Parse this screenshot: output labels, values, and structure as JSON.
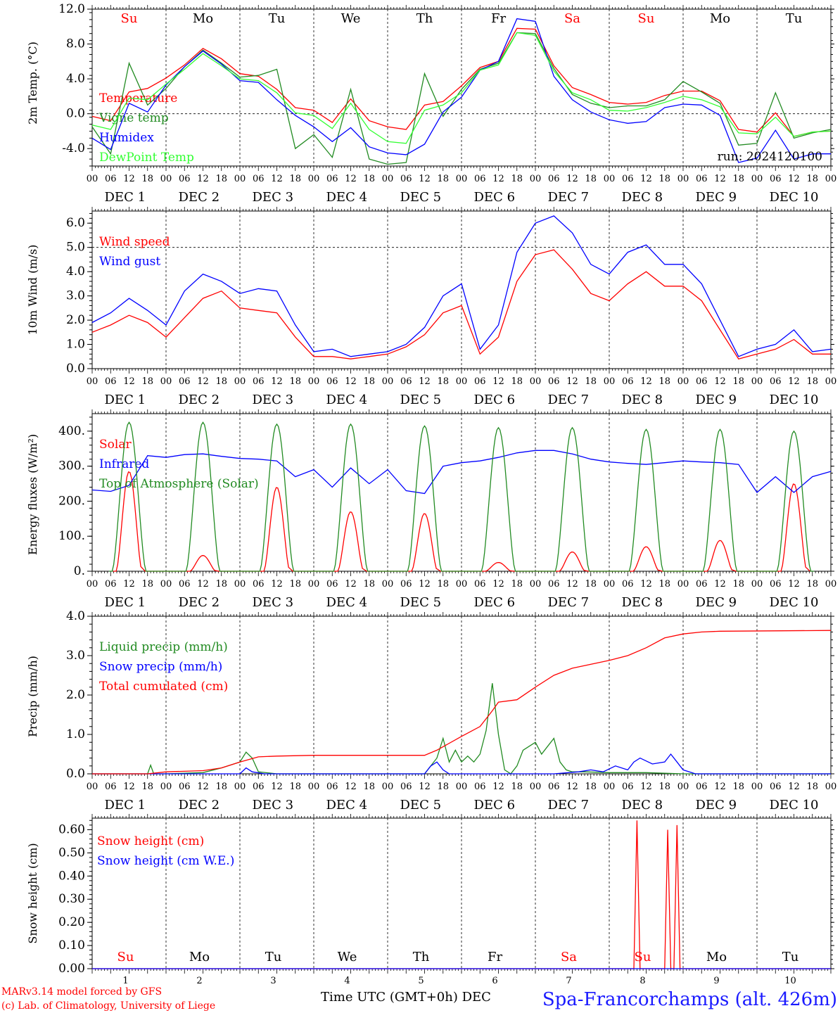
{
  "chart_data": [
    {
      "type": "line",
      "ylabel": "2m Temp. (°C)",
      "ylim": [
        -6,
        12
      ],
      "yticks": [
        "-4.0",
        "0.0",
        "4.0",
        "8.0",
        "12.0"
      ],
      "ytick_values": [
        -4,
        0,
        4,
        8,
        12
      ],
      "reference_line": 0,
      "x_unit": "hours from 2024-12-01 00 UTC",
      "xlim": [
        0,
        240
      ],
      "run_label": "run: 2024120100",
      "series": [
        {
          "name": "Temperature",
          "color": "#ff0000",
          "x": [
            0,
            6,
            12,
            18,
            24,
            30,
            36,
            42,
            48,
            54,
            60,
            66,
            72,
            78,
            84,
            90,
            96,
            102,
            108,
            114,
            120,
            126,
            132,
            138,
            144,
            150,
            156,
            162,
            168,
            174,
            180,
            186,
            192,
            198,
            204,
            210,
            216,
            222,
            228,
            234,
            240
          ],
          "y": [
            -0.3,
            -0.8,
            2.5,
            2.9,
            4.1,
            5.6,
            7.5,
            6.3,
            4.6,
            4.3,
            2.8,
            0.7,
            0.4,
            -1.0,
            1.7,
            -0.8,
            -1.5,
            -1.8,
            1.0,
            1.4,
            3.2,
            5.3,
            6.0,
            9.8,
            9.7,
            5.5,
            3.0,
            2.2,
            1.3,
            1.1,
            1.3,
            2.1,
            2.6,
            2.6,
            1.5,
            -1.8,
            -2.1,
            0.1,
            -2.6,
            -2.1,
            -2.0
          ]
        },
        {
          "name": "Vigne temp",
          "color": "#228b22",
          "x": [
            0,
            6,
            12,
            18,
            24,
            30,
            36,
            42,
            48,
            54,
            60,
            66,
            72,
            78,
            84,
            90,
            96,
            102,
            108,
            114,
            120,
            126,
            132,
            138,
            144,
            150,
            156,
            162,
            168,
            174,
            180,
            186,
            192,
            198,
            204,
            210,
            216,
            222,
            228,
            234,
            240
          ],
          "y": [
            -1.5,
            -4.6,
            5.8,
            1.0,
            2.9,
            5.4,
            7.3,
            5.8,
            4.2,
            4.4,
            5.1,
            -4.0,
            -2.4,
            -5.0,
            2.8,
            -5.2,
            -5.8,
            -5.6,
            4.6,
            -0.3,
            2.8,
            5.1,
            5.8,
            9.3,
            9.2,
            5.2,
            2.2,
            1.2,
            0.7,
            0.9,
            0.9,
            1.6,
            3.7,
            2.5,
            1.2,
            -3.6,
            -3.4,
            2.4,
            -2.8,
            -2.2,
            -1.8
          ]
        },
        {
          "name": "Humidex",
          "color": "#0000ff",
          "x": [
            0,
            6,
            12,
            18,
            24,
            30,
            36,
            42,
            48,
            54,
            60,
            66,
            72,
            78,
            84,
            90,
            96,
            102,
            108,
            114,
            120,
            126,
            132,
            138,
            144,
            150,
            156,
            162,
            168,
            174,
            180,
            186,
            192,
            198,
            204,
            210,
            216,
            222,
            228,
            234,
            240
          ],
          "y": [
            -2.8,
            -4.1,
            1.2,
            0.2,
            3.3,
            5.4,
            7.2,
            5.7,
            3.8,
            3.6,
            1.6,
            -0.2,
            -1.5,
            -3.2,
            -1.6,
            -3.8,
            -4.5,
            -4.7,
            -3.5,
            0.2,
            1.9,
            5.0,
            6.0,
            10.9,
            10.6,
            4.3,
            1.6,
            0.2,
            -0.7,
            -1.1,
            -0.9,
            0.7,
            1.1,
            1.0,
            -0.2,
            -5.6,
            -5.1,
            -1.9,
            -5.2,
            -4.6,
            -4.6
          ]
        },
        {
          "name": "DewPoint Temp",
          "color": "#33ff33",
          "x": [
            0,
            6,
            12,
            18,
            24,
            30,
            36,
            42,
            48,
            54,
            60,
            66,
            72,
            78,
            84,
            90,
            96,
            102,
            108,
            114,
            120,
            126,
            132,
            138,
            144,
            150,
            156,
            162,
            168,
            174,
            180,
            186,
            192,
            198,
            204,
            210,
            216,
            222,
            228,
            234,
            240
          ],
          "y": [
            -1.3,
            -1.8,
            1.8,
            1.6,
            3.4,
            5.1,
            6.9,
            5.5,
            4.0,
            3.8,
            2.4,
            0.1,
            -0.2,
            -1.7,
            1.2,
            -1.8,
            -3.2,
            -3.4,
            0.4,
            1.0,
            2.4,
            5.0,
            5.6,
            9.3,
            9.0,
            4.9,
            2.4,
            1.6,
            0.4,
            0.3,
            0.7,
            1.3,
            2.0,
            1.6,
            0.8,
            -2.2,
            -2.3,
            -0.4,
            -2.6,
            -2.1,
            -2.0
          ]
        }
      ]
    },
    {
      "type": "line",
      "ylabel": "10m Wind (m/s)",
      "ylim": [
        0,
        6.5
      ],
      "yticks": [
        "0.0",
        "1.0",
        "2.0",
        "3.0",
        "4.0",
        "5.0",
        "6.0"
      ],
      "ytick_values": [
        0,
        1,
        2,
        3,
        4,
        5,
        6
      ],
      "reference_line": 5,
      "x_unit": "hours from 2024-12-01 00 UTC",
      "xlim": [
        0,
        240
      ],
      "series": [
        {
          "name": "Wind speed",
          "color": "#ff0000",
          "x": [
            0,
            6,
            12,
            18,
            24,
            30,
            36,
            42,
            48,
            54,
            60,
            66,
            72,
            78,
            84,
            90,
            96,
            102,
            108,
            114,
            120,
            126,
            132,
            138,
            144,
            150,
            156,
            162,
            168,
            174,
            180,
            186,
            192,
            198,
            204,
            210,
            216,
            222,
            228,
            234,
            240
          ],
          "y": [
            1.5,
            1.8,
            2.2,
            1.9,
            1.3,
            2.1,
            2.9,
            3.2,
            2.5,
            2.4,
            2.3,
            1.3,
            0.5,
            0.5,
            0.4,
            0.5,
            0.6,
            0.9,
            1.4,
            2.3,
            2.6,
            0.6,
            1.3,
            3.6,
            4.7,
            4.9,
            4.1,
            3.1,
            2.8,
            3.5,
            4.0,
            3.4,
            3.4,
            2.8,
            1.6,
            0.4,
            0.6,
            0.8,
            1.2,
            0.6,
            0.6
          ]
        },
        {
          "name": "Wind gust",
          "color": "#0000ff",
          "x": [
            0,
            6,
            12,
            18,
            24,
            30,
            36,
            42,
            48,
            54,
            60,
            66,
            72,
            78,
            84,
            90,
            96,
            102,
            108,
            114,
            120,
            126,
            132,
            138,
            144,
            150,
            156,
            162,
            168,
            174,
            180,
            186,
            192,
            198,
            204,
            210,
            216,
            222,
            228,
            234,
            240
          ],
          "y": [
            1.9,
            2.3,
            2.9,
            2.4,
            1.8,
            3.2,
            3.9,
            3.6,
            3.1,
            3.3,
            3.2,
            1.8,
            0.7,
            0.8,
            0.5,
            0.6,
            0.7,
            1.0,
            1.7,
            3.0,
            3.5,
            0.8,
            1.8,
            4.8,
            6.0,
            6.3,
            5.6,
            4.3,
            3.9,
            4.8,
            5.1,
            4.3,
            4.3,
            3.5,
            2.0,
            0.5,
            0.8,
            1.0,
            1.6,
            0.7,
            0.8
          ]
        }
      ]
    },
    {
      "type": "line",
      "ylabel": "Energy fluxes (W/m²)",
      "ylim": [
        0,
        450
      ],
      "yticks": [
        "0.",
        "100.",
        "200.",
        "300.",
        "400."
      ],
      "ytick_values": [
        0,
        100,
        200,
        300,
        400
      ],
      "x_unit": "hours from 2024-12-01 00 UTC",
      "xlim": [
        0,
        240
      ],
      "series": [
        {
          "name": "Solar",
          "color": "#ff0000",
          "peaks": [
            285,
            45,
            240,
            170,
            165,
            25,
            55,
            70,
            88,
            250
          ]
        },
        {
          "name": "Infrared",
          "color": "#0000ff",
          "x": [
            0,
            6,
            12,
            18,
            24,
            30,
            36,
            42,
            48,
            54,
            60,
            66,
            72,
            78,
            84,
            90,
            96,
            102,
            108,
            114,
            120,
            126,
            132,
            138,
            144,
            150,
            156,
            162,
            168,
            174,
            180,
            186,
            192,
            198,
            204,
            210,
            216,
            222,
            228,
            234,
            240
          ],
          "y": [
            232,
            228,
            245,
            330,
            325,
            333,
            335,
            328,
            322,
            320,
            315,
            270,
            290,
            240,
            295,
            250,
            290,
            230,
            222,
            300,
            310,
            315,
            325,
            338,
            345,
            345,
            335,
            320,
            312,
            308,
            305,
            310,
            315,
            312,
            310,
            305,
            225,
            270,
            225,
            270,
            285
          ]
        },
        {
          "name": "Top of Atmosphere (Solar)",
          "color": "#228b22",
          "peaks": [
            425,
            425,
            420,
            420,
            415,
            410,
            410,
            405,
            405,
            400
          ]
        }
      ]
    },
    {
      "type": "line",
      "ylabel": "Precip (mm/h)",
      "ylim": [
        0,
        4.0
      ],
      "yticks": [
        "0.0",
        "1.0",
        "2.0",
        "3.0",
        "4.0"
      ],
      "ytick_values": [
        0,
        1,
        2,
        3,
        4
      ],
      "x_unit": "hours from 2024-12-01 00 UTC",
      "xlim": [
        0,
        240
      ],
      "series": [
        {
          "name": "Liquid precip (mm/h)",
          "color": "#228b22",
          "x": [
            0,
            12,
            18,
            19,
            20,
            24,
            36,
            42,
            48,
            50,
            52,
            54,
            60,
            84,
            108,
            112,
            114,
            116,
            118,
            120,
            122,
            124,
            126,
            128,
            130,
            132,
            134,
            136,
            138,
            140,
            144,
            146,
            148,
            150,
            152,
            154,
            156,
            160,
            168,
            180,
            192,
            240
          ],
          "y": [
            0,
            0,
            0,
            0.22,
            0,
            0,
            0.03,
            0.15,
            0.3,
            0.55,
            0.4,
            0.05,
            0,
            0,
            0,
            0.4,
            0.9,
            0.3,
            0.6,
            0.3,
            0.45,
            0.3,
            0.5,
            1.1,
            2.3,
            1.0,
            0.1,
            0,
            0.2,
            0.6,
            0.8,
            0.5,
            0.7,
            0.9,
            0.3,
            0.1,
            0.05,
            0.05,
            0.03,
            0.03,
            0,
            0
          ]
        },
        {
          "name": "Snow precip (mm/h)",
          "color": "#0000ff",
          "x": [
            0,
            48,
            50,
            52,
            56,
            108,
            110,
            112,
            114,
            116,
            120,
            150,
            158,
            162,
            166,
            170,
            174,
            176,
            178,
            182,
            186,
            188,
            190,
            192,
            196,
            240
          ],
          "y": [
            0,
            0,
            0.15,
            0.05,
            0,
            0,
            0.2,
            0.3,
            0.1,
            0,
            0,
            0,
            0.05,
            0.1,
            0.05,
            0.2,
            0.1,
            0.3,
            0.4,
            0.25,
            0.3,
            0.5,
            0.3,
            0.1,
            0,
            0
          ]
        },
        {
          "name": "Total cumulated (cm)",
          "color": "#ff0000",
          "x": [
            0,
            18,
            24,
            36,
            42,
            48,
            54,
            60,
            72,
            96,
            108,
            112,
            120,
            126,
            130,
            132,
            138,
            144,
            150,
            156,
            168,
            174,
            180,
            186,
            192,
            198,
            204,
            240
          ],
          "y": [
            0,
            0,
            0.05,
            0.08,
            0.15,
            0.3,
            0.43,
            0.45,
            0.47,
            0.47,
            0.47,
            0.6,
            0.95,
            1.2,
            1.6,
            1.82,
            1.88,
            2.2,
            2.5,
            2.68,
            2.88,
            3.0,
            3.2,
            3.45,
            3.55,
            3.6,
            3.62,
            3.64
          ]
        }
      ]
    },
    {
      "type": "line",
      "ylabel": "Snow height (cm)",
      "ylim": [
        0,
        0.65
      ],
      "yticks": [
        "0.00",
        "0.10",
        "0.20",
        "0.30",
        "0.40",
        "0.50",
        "0.60"
      ],
      "ytick_values": [
        0,
        0.1,
        0.2,
        0.3,
        0.4,
        0.5,
        0.6
      ],
      "x_unit": "hours from 2024-12-01 00 UTC",
      "xlim": [
        0,
        240
      ],
      "series": [
        {
          "name": "Snow height (cm)",
          "color": "#ff0000",
          "x": [
            0,
            176,
            177,
            178,
            186,
            187,
            188,
            189,
            190,
            191,
            240
          ],
          "y": [
            0,
            0,
            0.64,
            0,
            0,
            0.6,
            0,
            0,
            0.62,
            0,
            0
          ]
        },
        {
          "name": "Snow height (cm W.E.)",
          "color": "#0000ff",
          "x": [
            0,
            240
          ],
          "y": [
            0,
            0
          ]
        }
      ]
    }
  ],
  "weekdays": [
    {
      "label": "Su",
      "color": "#ff0000"
    },
    {
      "label": "Mo",
      "color": "#000000"
    },
    {
      "label": "Tu",
      "color": "#000000"
    },
    {
      "label": "We",
      "color": "#000000"
    },
    {
      "label": "Th",
      "color": "#000000"
    },
    {
      "label": "Fr",
      "color": "#000000"
    },
    {
      "label": "Sa",
      "color": "#ff0000"
    },
    {
      "label": "Su",
      "color": "#ff0000"
    },
    {
      "label": "Mo",
      "color": "#000000"
    },
    {
      "label": "Tu",
      "color": "#000000"
    }
  ],
  "hour_ticks": [
    "00",
    "06",
    "12",
    "18"
  ],
  "hour_end": "00",
  "date_labels": [
    "DEC  1",
    "DEC  2",
    "DEC  3",
    "DEC  4",
    "DEC  5",
    "DEC  6",
    "DEC  7",
    "DEC  8",
    "DEC  9",
    "DEC 10"
  ],
  "day_numbers": [
    "1",
    "2",
    "3",
    "4",
    "5",
    "6",
    "7",
    "8",
    "9",
    "10"
  ],
  "footer": {
    "model": "MARv3.14 model forced by GFS",
    "copyright": "(c) Lab. of Climatology, University of Liege",
    "xlabel": "Time UTC (GMT+0h) DEC",
    "station": "Spa-Francorchamps (alt. 426m)"
  }
}
